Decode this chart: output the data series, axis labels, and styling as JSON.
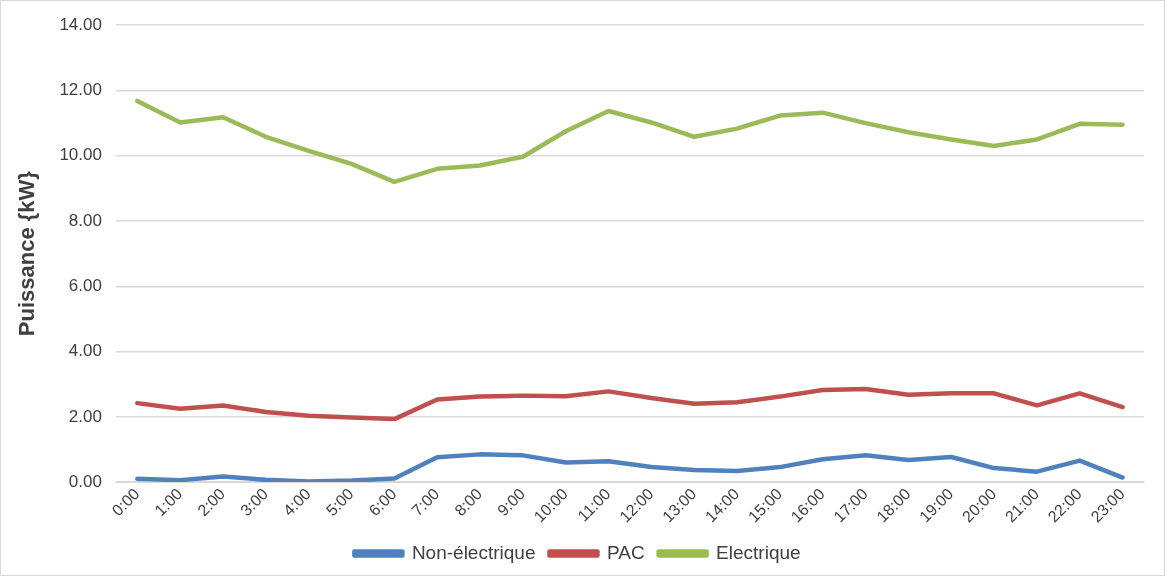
{
  "chart_data": {
    "type": "line",
    "ylabel": "Puissance {kW}",
    "categories": [
      "0:00",
      "1:00",
      "2:00",
      "3:00",
      "4:00",
      "5:00",
      "6:00",
      "7:00",
      "8:00",
      "9:00",
      "10:00",
      "11:00",
      "12:00",
      "13:00",
      "14:00",
      "15:00",
      "16:00",
      "17:00",
      "18:00",
      "19:00",
      "20:00",
      "21:00",
      "22:00",
      "23:00"
    ],
    "series": [
      {
        "name": "Non-électrique",
        "color": "#4f81bd",
        "values": [
          0.1,
          0.06,
          0.17,
          0.07,
          0.02,
          0.05,
          0.11,
          0.76,
          0.85,
          0.82,
          0.6,
          0.64,
          0.46,
          0.37,
          0.34,
          0.46,
          0.7,
          0.82,
          0.68,
          0.77,
          0.43,
          0.32,
          0.66,
          0.14
        ]
      },
      {
        "name": "PAC",
        "color": "#c0504d",
        "values": [
          2.42,
          2.25,
          2.35,
          2.15,
          2.03,
          1.98,
          1.93,
          2.53,
          2.62,
          2.65,
          2.63,
          2.78,
          2.58,
          2.4,
          2.45,
          2.62,
          2.82,
          2.85,
          2.68,
          2.72,
          2.72,
          2.35,
          2.72,
          2.3
        ]
      },
      {
        "name": "Electrique",
        "color": "#9bbb59",
        "values": [
          11.68,
          11.02,
          11.18,
          10.58,
          10.15,
          9.75,
          9.2,
          9.6,
          9.7,
          9.97,
          10.75,
          11.37,
          11.02,
          10.58,
          10.83,
          11.23,
          11.32,
          11.0,
          10.72,
          10.5,
          10.3,
          10.5,
          10.98,
          10.95
        ]
      }
    ],
    "ylim": [
      0,
      14
    ],
    "yticks": [
      {
        "value": 0,
        "label": "0.00"
      },
      {
        "value": 2,
        "label": "2.00"
      },
      {
        "value": 4,
        "label": "4.00"
      },
      {
        "value": 6,
        "label": "6.00"
      },
      {
        "value": 8,
        "label": "8.00"
      },
      {
        "value": 10,
        "label": "10.00"
      },
      {
        "value": 12,
        "label": "12.00"
      },
      {
        "value": 14,
        "label": "14.00"
      }
    ],
    "grid": "y",
    "legend": "bottom",
    "marker": "none",
    "line_style": "solid"
  }
}
